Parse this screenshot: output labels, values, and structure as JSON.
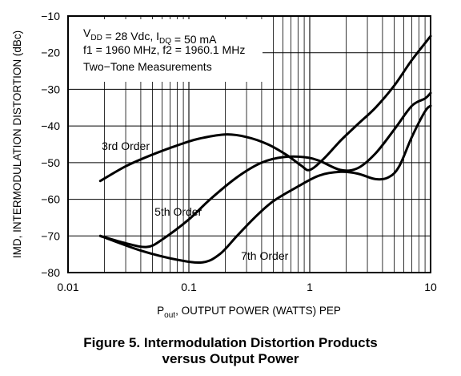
{
  "chart_data": {
    "type": "line",
    "xscale": "log",
    "xlim": [
      0.01,
      10
    ],
    "ylim": [
      -80,
      -10
    ],
    "grid": true,
    "xlabel": {
      "prefix": "P",
      "sub": "out",
      "rest": ", OUTPUT POWER (WATTS) PEP"
    },
    "ylabel": "IMD, INTERMODULATION DISTORTION (dBc)",
    "x_tick_labels": [
      {
        "x": 0.01,
        "label": "0.01"
      },
      {
        "x": 0.1,
        "label": "0.1"
      },
      {
        "x": 1,
        "label": "1"
      },
      {
        "x": 10,
        "label": "10"
      }
    ],
    "y_tick_labels": [
      {
        "y": -10,
        "label": "−10"
      },
      {
        "y": -20,
        "label": "−20"
      },
      {
        "y": -30,
        "label": "−30"
      },
      {
        "y": -40,
        "label": "−40"
      },
      {
        "y": -50,
        "label": "−50"
      },
      {
        "y": -60,
        "label": "−60"
      },
      {
        "y": -70,
        "label": "−70"
      },
      {
        "y": -80,
        "label": "−80"
      }
    ],
    "conditions": [
      {
        "parts": [
          {
            "t": "V"
          },
          {
            "t": "DD",
            "sub": true
          },
          {
            "t": " = 28 Vdc, I"
          },
          {
            "t": "DQ",
            "sub": true
          },
          {
            "t": " = 50 mA"
          }
        ]
      },
      {
        "parts": [
          {
            "t": "f1 = 1960 MHz, f2 = 1960.1 MHz"
          }
        ]
      },
      {
        "parts": [
          {
            "t": "Two−Tone Measurements"
          }
        ]
      }
    ],
    "series": [
      {
        "name": "3rd Order",
        "label_at": {
          "x": 0.019,
          "y": -46.5
        },
        "points": [
          [
            0.0185,
            -55
          ],
          [
            0.03,
            -51
          ],
          [
            0.05,
            -47.8
          ],
          [
            0.08,
            -45.3
          ],
          [
            0.12,
            -43.5
          ],
          [
            0.2,
            -42.3
          ],
          [
            0.3,
            -43
          ],
          [
            0.45,
            -45
          ],
          [
            0.65,
            -48
          ],
          [
            0.85,
            -50.8
          ],
          [
            1.0,
            -52
          ],
          [
            1.3,
            -49
          ],
          [
            1.8,
            -44
          ],
          [
            2.5,
            -39.5
          ],
          [
            3.5,
            -35
          ],
          [
            5,
            -29
          ],
          [
            7,
            -22
          ],
          [
            10,
            -15.5
          ]
        ]
      },
      {
        "name": "5th Order",
        "label_at": {
          "x": 0.052,
          "y": -64.5
        },
        "points": [
          [
            0.0185,
            -70
          ],
          [
            0.03,
            -72
          ],
          [
            0.045,
            -73
          ],
          [
            0.06,
            -71
          ],
          [
            0.1,
            -65.5
          ],
          [
            0.15,
            -60
          ],
          [
            0.25,
            -54
          ],
          [
            0.4,
            -50
          ],
          [
            0.6,
            -48.5
          ],
          [
            0.9,
            -48.5
          ],
          [
            1.2,
            -49.5
          ],
          [
            1.8,
            -52
          ],
          [
            2.5,
            -51.5
          ],
          [
            3.5,
            -47.5
          ],
          [
            5,
            -41
          ],
          [
            7,
            -34.5
          ],
          [
            9,
            -32.5
          ],
          [
            10,
            -31
          ]
        ]
      },
      {
        "name": "7th Order",
        "label_at": {
          "x": 0.27,
          "y": -76.5
        },
        "points": [
          [
            0.0185,
            -70
          ],
          [
            0.04,
            -74
          ],
          [
            0.08,
            -76.5
          ],
          [
            0.13,
            -77.2
          ],
          [
            0.18,
            -75
          ],
          [
            0.25,
            -70
          ],
          [
            0.35,
            -65
          ],
          [
            0.5,
            -60.5
          ],
          [
            0.8,
            -56.5
          ],
          [
            1.2,
            -53.5
          ],
          [
            1.8,
            -52.5
          ],
          [
            2.5,
            -53
          ],
          [
            3.5,
            -54.5
          ],
          [
            4.5,
            -54
          ],
          [
            5.5,
            -51
          ],
          [
            7,
            -43
          ],
          [
            9,
            -36
          ],
          [
            10,
            -34.5
          ]
        ]
      }
    ]
  },
  "caption": {
    "line1": "Figure 5. Intermodulation Distortion Products",
    "line2": "versus Output Power"
  }
}
